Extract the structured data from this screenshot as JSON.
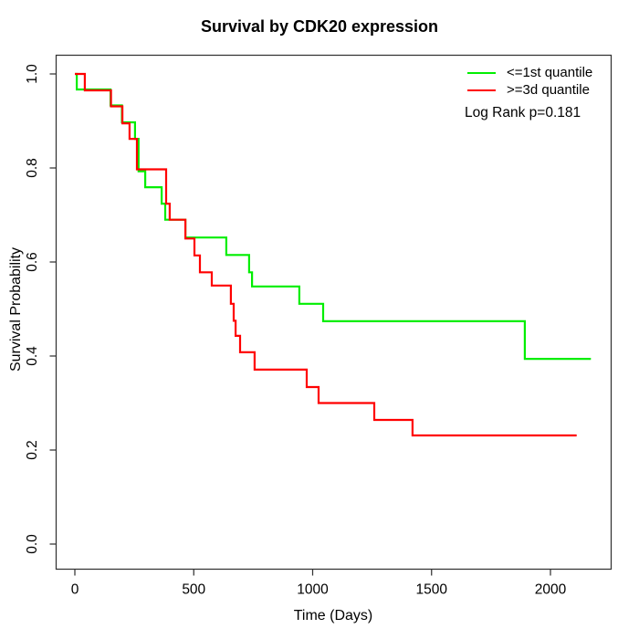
{
  "chart_data": {
    "type": "line",
    "subtype": "kaplan-meier-step",
    "title": "Survival by CDK20 expression",
    "xlabel": "Time (Days)",
    "ylabel": "Survival Probability",
    "grid": false,
    "legend_position": "top-right",
    "annotation": "Log Rank p=0.181",
    "axis_color": "#333333",
    "x_ticks": [
      {
        "value": 0,
        "label": "0"
      },
      {
        "value": 500,
        "label": "500"
      },
      {
        "value": 1000,
        "label": "1000"
      },
      {
        "value": 1500,
        "label": "1500"
      },
      {
        "value": 2000,
        "label": "2000"
      }
    ],
    "y_ticks": [
      {
        "value": 0.0,
        "label": "0.0"
      },
      {
        "value": 0.2,
        "label": "0.2"
      },
      {
        "value": 0.4,
        "label": "0.4"
      },
      {
        "value": 0.6,
        "label": "0.6"
      },
      {
        "value": 0.8,
        "label": "0.8"
      },
      {
        "value": 1.0,
        "label": "1.0"
      }
    ],
    "xlim": [
      -77,
      2253
    ],
    "ylim": [
      -0.05,
      1.04
    ],
    "series": [
      {
        "id": "first-quantile",
        "name": "<=1st quantile",
        "color": "#00EE00",
        "points": [
          [
            0,
            1.0
          ],
          [
            8,
            0.967
          ],
          [
            150,
            0.933
          ],
          [
            198,
            0.897
          ],
          [
            253,
            0.862
          ],
          [
            268,
            0.793
          ],
          [
            296,
            0.759
          ],
          [
            365,
            0.724
          ],
          [
            380,
            0.69
          ],
          [
            465,
            0.652
          ],
          [
            637,
            0.615
          ],
          [
            733,
            0.578
          ],
          [
            745,
            0.548
          ],
          [
            944,
            0.511
          ],
          [
            1044,
            0.474
          ],
          [
            1892,
            0.394
          ]
        ],
        "end_day": 2170
      },
      {
        "id": "third-quantile",
        "name": ">=3d quantile",
        "color": "#FF0000",
        "points": [
          [
            0,
            1.0
          ],
          [
            42,
            0.965
          ],
          [
            152,
            0.931
          ],
          [
            200,
            0.895
          ],
          [
            230,
            0.862
          ],
          [
            261,
            0.797
          ],
          [
            384,
            0.724
          ],
          [
            399,
            0.69
          ],
          [
            465,
            0.65
          ],
          [
            503,
            0.614
          ],
          [
            526,
            0.578
          ],
          [
            576,
            0.55
          ],
          [
            656,
            0.511
          ],
          [
            668,
            0.475
          ],
          [
            676,
            0.443
          ],
          [
            695,
            0.408
          ],
          [
            756,
            0.371
          ],
          [
            975,
            0.334
          ],
          [
            1025,
            0.3
          ],
          [
            1259,
            0.264
          ],
          [
            1420,
            0.231
          ]
        ],
        "end_day": 2110
      }
    ]
  }
}
